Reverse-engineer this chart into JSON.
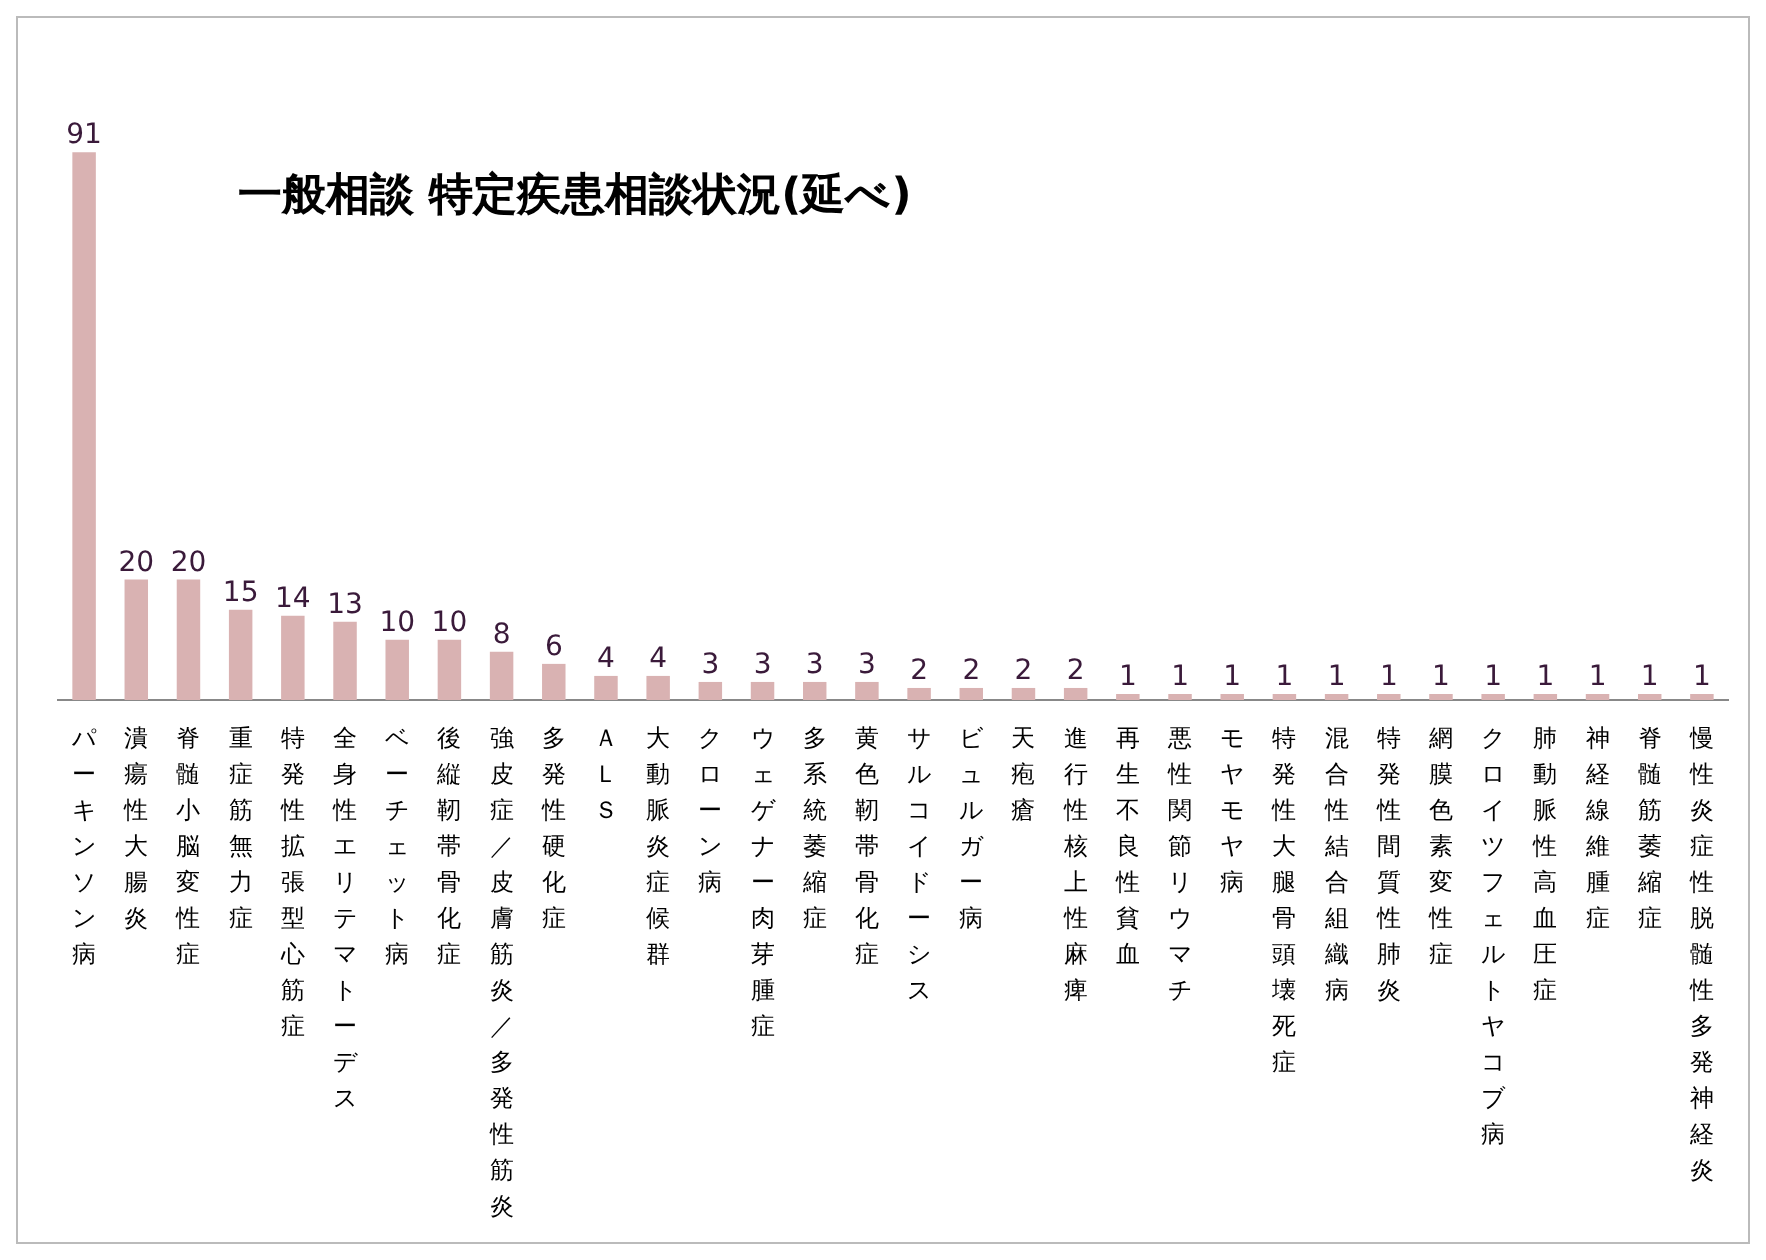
{
  "chart_data": {
    "type": "bar",
    "title": "一般相談 特定疾患相談状況(延べ)",
    "categories": [
      "パーキンソン病",
      "潰瘍性大腸炎",
      "脊髄小脳変性症",
      "重症筋無力症",
      "特発性拡張型心筋症",
      "全身性エリテマトーデス",
      "ベーチェット病",
      "後縦靭帯骨化症",
      "強皮症／皮膚筋炎／多発性筋炎",
      "多発性硬化症",
      "ＡＬＳ",
      "大動脈炎症候群",
      "クローン病",
      "ウェゲナー肉芽腫症",
      "多系統萎縮症",
      "黄色靭帯骨化症",
      "サルコイドーシス",
      "ビュルガー病",
      "天疱瘡",
      "進行性核上性麻痺",
      "再生不良性貧血",
      "悪性関節リウマチ",
      "モヤモヤ病",
      "特発性大腿骨頭壊死症",
      "混合性結合組織病",
      "特発性間質性肺炎",
      "網膜色素変性症",
      "クロイツフェルトヤコブ病",
      "肺動脈性高血圧症",
      "神経線維腫症",
      "脊髄筋萎縮症",
      "慢性炎症性脱髄性多発神経炎"
    ],
    "values": [
      91,
      20,
      20,
      15,
      14,
      13,
      10,
      10,
      8,
      6,
      4,
      4,
      3,
      3,
      3,
      3,
      2,
      2,
      2,
      2,
      1,
      1,
      1,
      1,
      1,
      1,
      1,
      1,
      1,
      1,
      1,
      1
    ],
    "color": "#d9b2b2",
    "data_labels": true,
    "grid": false,
    "legend": false
  }
}
